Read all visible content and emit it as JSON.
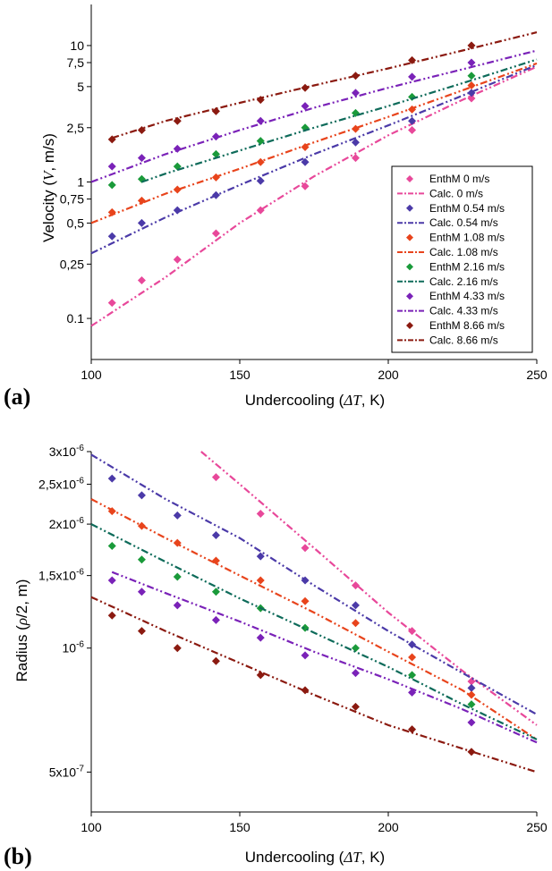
{
  "chart_data": [
    {
      "panel_label": "(a)",
      "type": "scatter",
      "xlabel_prefix": "Undercooling (",
      "xlabel_var": "ΔT",
      "xlabel_suffix": ", K)",
      "ylabel_prefix": "Velocity (",
      "ylabel_var": "V",
      "ylabel_suffix": ", m/s)",
      "xlim": [
        100,
        250
      ],
      "ylim": [
        0.05,
        20
      ],
      "yscale": "log",
      "xticks": [
        100,
        150,
        200,
        250
      ],
      "xtick_labels": [
        "100",
        "150",
        "200",
        "250"
      ],
      "yticks": [
        0.1,
        0.25,
        0.5,
        0.75,
        1,
        2.5,
        5,
        7.5,
        10
      ],
      "ytick_labels": [
        "0.1",
        "0,25",
        "0,5",
        "0,75",
        "1",
        "2,5",
        "5",
        "7,5",
        "10"
      ],
      "legend_position": "bottom-right",
      "legend": [
        {
          "label": "EnthM 0 m/s",
          "kind": "marker",
          "color": "#e8489a"
        },
        {
          "label": "Calc. 0 m/s",
          "kind": "line",
          "color": "#e8489a"
        },
        {
          "label": "EnthM 0.54 m/s",
          "kind": "marker",
          "color": "#4b3aa8"
        },
        {
          "label": "Calc. 0.54 m/s",
          "kind": "line",
          "color": "#4b3aa8"
        },
        {
          "label": "EnthM 1.08 m/s",
          "kind": "marker",
          "color": "#e8441c"
        },
        {
          "label": "Calc. 1.08 m/s",
          "kind": "line",
          "color": "#e8441c"
        },
        {
          "label": "EnthM 2.16 m/s",
          "kind": "marker",
          "color": "#1a9a3a"
        },
        {
          "label": "Calc. 2.16 m/s",
          "kind": "line",
          "color": "#0e6b5a"
        },
        {
          "label": "EnthM 4.33 m/s",
          "kind": "marker",
          "color": "#7a22b8"
        },
        {
          "label": "Calc. 4.33 m/s",
          "kind": "line",
          "color": "#7a22b8"
        },
        {
          "label": "EnthM 8.66 m/s",
          "kind": "marker",
          "color": "#8b1a10"
        },
        {
          "label": "Calc. 8.66 m/s",
          "kind": "line",
          "color": "#8b1a10"
        }
      ],
      "series": [
        {
          "name": "EnthM 0 m/s",
          "kind": "marker",
          "color": "#e8489a",
          "points": [
            [
              107,
              0.13
            ],
            [
              117,
              0.19
            ],
            [
              129,
              0.27
            ],
            [
              142,
              0.42
            ],
            [
              157,
              0.62
            ],
            [
              172,
              0.93
            ],
            [
              189,
              1.5
            ],
            [
              208,
              2.4
            ],
            [
              228,
              4.1
            ]
          ]
        },
        {
          "name": "Calc. 0 m/s",
          "kind": "line",
          "color": "#e8489a",
          "points": [
            [
              100,
              0.088
            ],
            [
              125,
              0.2
            ],
            [
              150,
              0.5
            ],
            [
              175,
              1.1
            ],
            [
              200,
              2.2
            ],
            [
              225,
              4.0
            ],
            [
              250,
              7.0
            ]
          ]
        },
        {
          "name": "EnthM 0.54 m/s",
          "kind": "marker",
          "color": "#4b3aa8",
          "points": [
            [
              107,
              0.4
            ],
            [
              117,
              0.5
            ],
            [
              129,
              0.62
            ],
            [
              142,
              0.8
            ],
            [
              157,
              1.02
            ],
            [
              172,
              1.4
            ],
            [
              189,
              1.95
            ],
            [
              208,
              2.8
            ],
            [
              228,
              4.5
            ]
          ]
        },
        {
          "name": "Calc. 0.54 m/s",
          "kind": "line",
          "color": "#4b3aa8",
          "points": [
            [
              100,
              0.3
            ],
            [
              125,
              0.55
            ],
            [
              150,
              0.95
            ],
            [
              175,
              1.6
            ],
            [
              200,
              2.6
            ],
            [
              225,
              4.3
            ],
            [
              250,
              7.2
            ]
          ]
        },
        {
          "name": "EnthM 1.08 m/s",
          "kind": "marker",
          "color": "#e8441c",
          "points": [
            [
              107,
              0.6
            ],
            [
              117,
              0.73
            ],
            [
              129,
              0.88
            ],
            [
              142,
              1.08
            ],
            [
              157,
              1.4
            ],
            [
              172,
              1.8
            ],
            [
              189,
              2.45
            ],
            [
              208,
              3.4
            ],
            [
              228,
              5.1
            ]
          ]
        },
        {
          "name": "Calc. 1.08 m/s",
          "kind": "line",
          "color": "#e8441c",
          "points": [
            [
              100,
              0.5
            ],
            [
              125,
              0.82
            ],
            [
              150,
              1.25
            ],
            [
              175,
              1.95
            ],
            [
              200,
              3.0
            ],
            [
              225,
              4.7
            ],
            [
              250,
              7.4
            ]
          ]
        },
        {
          "name": "EnthM 2.16 m/s",
          "kind": "marker",
          "color": "#1a9a3a",
          "points": [
            [
              107,
              0.95
            ],
            [
              117,
              1.05
            ],
            [
              129,
              1.3
            ],
            [
              142,
              1.6
            ],
            [
              157,
              2.0
            ],
            [
              172,
              2.5
            ],
            [
              189,
              3.2
            ],
            [
              208,
              4.2
            ],
            [
              228,
              6.0
            ]
          ]
        },
        {
          "name": "Calc. 2.16 m/s",
          "kind": "line",
          "color": "#0e6b5a",
          "points": [
            [
              117,
              1.0
            ],
            [
              125,
              1.15
            ],
            [
              150,
              1.7
            ],
            [
              175,
              2.5
            ],
            [
              200,
              3.6
            ],
            [
              225,
              5.3
            ],
            [
              250,
              7.9
            ]
          ]
        },
        {
          "name": "EnthM 4.33 m/s",
          "kind": "marker",
          "color": "#7a22b8",
          "points": [
            [
              107,
              1.3
            ],
            [
              117,
              1.5
            ],
            [
              129,
              1.75
            ],
            [
              142,
              2.15
            ],
            [
              157,
              2.8
            ],
            [
              172,
              3.6
            ],
            [
              189,
              4.5
            ],
            [
              208,
              5.9
            ],
            [
              228,
              7.5
            ]
          ]
        },
        {
          "name": "Calc. 4.33 m/s",
          "kind": "line",
          "color": "#7a22b8",
          "points": [
            [
              100,
              1.0
            ],
            [
              125,
              1.6
            ],
            [
              150,
              2.4
            ],
            [
              175,
              3.5
            ],
            [
              200,
              4.9
            ],
            [
              225,
              6.7
            ],
            [
              250,
              9.2
            ]
          ]
        },
        {
          "name": "EnthM 8.66 m/s",
          "kind": "marker",
          "color": "#8b1a10",
          "points": [
            [
              107,
              2.05
            ],
            [
              117,
              2.4
            ],
            [
              129,
              2.8
            ],
            [
              142,
              3.3
            ],
            [
              157,
              4.0
            ],
            [
              172,
              4.9
            ],
            [
              189,
              6.0
            ],
            [
              208,
              7.8
            ],
            [
              228,
              10.0
            ]
          ]
        },
        {
          "name": "Calc. 8.66 m/s",
          "kind": "line",
          "color": "#8b1a10",
          "points": [
            [
              107,
              2.1
            ],
            [
              125,
              2.8
            ],
            [
              150,
              3.8
            ],
            [
              175,
              5.1
            ],
            [
              200,
              6.8
            ],
            [
              225,
              9.2
            ],
            [
              250,
              12.5
            ]
          ]
        }
      ]
    },
    {
      "panel_label": "(b)",
      "type": "scatter",
      "xlabel_prefix": "Undercooling (",
      "xlabel_var": "ΔT",
      "xlabel_suffix": ", K)",
      "ylabel_prefix": "Radius (",
      "ylabel_var": "ρ",
      "ylabel_suffix": "/2, m)",
      "xlim": [
        100,
        250
      ],
      "ylim": [
        4e-07,
        3e-06
      ],
      "yscale": "log",
      "xticks": [
        100,
        150,
        200,
        250
      ],
      "xtick_labels": [
        "100",
        "150",
        "200",
        "250"
      ],
      "yticks": [
        5e-07,
        1e-06,
        1.5e-06,
        2e-06,
        2.5e-06,
        3e-06
      ],
      "ytick_labels": [
        {
          "mant": "5x10",
          "exp": "-7"
        },
        {
          "mant": "10",
          "exp": "-6"
        },
        {
          "mant": "1,5x10",
          "exp": "-6"
        },
        {
          "mant": "2x10",
          "exp": "-6"
        },
        {
          "mant": "2,5x10",
          "exp": "-6"
        },
        {
          "mant": "3x10",
          "exp": "-6"
        }
      ],
      "series": [
        {
          "name": "EnthM 0 m/s",
          "kind": "marker",
          "color": "#e8489a",
          "points": [
            [
              142,
              2.6e-06
            ],
            [
              157,
              2.12e-06
            ],
            [
              172,
              1.75e-06
            ],
            [
              189,
              1.42e-06
            ],
            [
              208,
              1.1e-06
            ],
            [
              228,
              8.3e-07
            ]
          ]
        },
        {
          "name": "Calc. 0 m/s",
          "kind": "line",
          "color": "#e8489a",
          "points": [
            [
              137,
              3e-06
            ],
            [
              150,
              2.5e-06
            ],
            [
              175,
              1.75e-06
            ],
            [
              200,
              1.22e-06
            ],
            [
              225,
              8.8e-07
            ],
            [
              250,
              6.5e-07
            ]
          ]
        },
        {
          "name": "EnthM 0.54 m/s",
          "kind": "marker",
          "color": "#4b3aa8",
          "points": [
            [
              107,
              2.58e-06
            ],
            [
              117,
              2.35e-06
            ],
            [
              129,
              2.1e-06
            ],
            [
              142,
              1.88e-06
            ],
            [
              157,
              1.67e-06
            ],
            [
              172,
              1.46e-06
            ],
            [
              189,
              1.27e-06
            ],
            [
              208,
              1.02e-06
            ],
            [
              228,
              8e-07
            ]
          ]
        },
        {
          "name": "Calc. 0.54 m/s",
          "kind": "line",
          "color": "#4b3aa8",
          "points": [
            [
              100,
              2.95e-06
            ],
            [
              125,
              2.3e-06
            ],
            [
              150,
              1.85e-06
            ],
            [
              175,
              1.42e-06
            ],
            [
              200,
              1.1e-06
            ],
            [
              225,
              8.7e-07
            ],
            [
              250,
              6.9e-07
            ]
          ]
        },
        {
          "name": "EnthM 1.08 m/s",
          "kind": "marker",
          "color": "#e8441c",
          "points": [
            [
              107,
              2.15e-06
            ],
            [
              117,
              1.98e-06
            ],
            [
              129,
              1.8e-06
            ],
            [
              142,
              1.63e-06
            ],
            [
              157,
              1.46e-06
            ],
            [
              172,
              1.3e-06
            ],
            [
              189,
              1.15e-06
            ],
            [
              208,
              9.5e-07
            ],
            [
              228,
              7.7e-07
            ]
          ]
        },
        {
          "name": "Calc. 1.08 m/s",
          "kind": "line",
          "color": "#e8441c",
          "points": [
            [
              100,
              2.3e-06
            ],
            [
              125,
              1.85e-06
            ],
            [
              150,
              1.5e-06
            ],
            [
              175,
              1.22e-06
            ],
            [
              200,
              9.8e-07
            ],
            [
              225,
              7.9e-07
            ],
            [
              250,
              6e-07
            ]
          ]
        },
        {
          "name": "EnthM 2.16 m/s",
          "kind": "marker",
          "color": "#1a9a3a",
          "points": [
            [
              107,
              1.77e-06
            ],
            [
              117,
              1.64e-06
            ],
            [
              129,
              1.49e-06
            ],
            [
              142,
              1.37e-06
            ],
            [
              157,
              1.25e-06
            ],
            [
              172,
              1.12e-06
            ],
            [
              189,
              1e-06
            ],
            [
              208,
              8.6e-07
            ],
            [
              228,
              7.3e-07
            ]
          ]
        },
        {
          "name": "Calc. 2.16 m/s",
          "kind": "line",
          "color": "#0e6b5a",
          "points": [
            [
              100,
              2e-06
            ],
            [
              125,
              1.62e-06
            ],
            [
              150,
              1.32e-06
            ],
            [
              175,
              1.09e-06
            ],
            [
              200,
              9e-07
            ],
            [
              225,
              7.3e-07
            ],
            [
              250,
              6e-07
            ]
          ]
        },
        {
          "name": "EnthM 4.33 m/s",
          "kind": "marker",
          "color": "#7a22b8",
          "points": [
            [
              107,
              1.46e-06
            ],
            [
              117,
              1.37e-06
            ],
            [
              129,
              1.27e-06
            ],
            [
              142,
              1.17e-06
            ],
            [
              157,
              1.06e-06
            ],
            [
              172,
              9.6e-07
            ],
            [
              189,
              8.7e-07
            ],
            [
              208,
              7.8e-07
            ],
            [
              228,
              6.6e-07
            ]
          ]
        },
        {
          "name": "Calc. 4.33 m/s",
          "kind": "line",
          "color": "#7a22b8",
          "points": [
            [
              107,
              1.53e-06
            ],
            [
              125,
              1.36e-06
            ],
            [
              150,
              1.16e-06
            ],
            [
              175,
              9.8e-07
            ],
            [
              200,
              8.4e-07
            ],
            [
              225,
              7.1e-07
            ],
            [
              250,
              5.9e-07
            ]
          ]
        },
        {
          "name": "EnthM 8.66 m/s",
          "kind": "marker",
          "color": "#8b1a10",
          "points": [
            [
              107,
              1.2e-06
            ],
            [
              117,
              1.1e-06
            ],
            [
              129,
              1e-06
            ],
            [
              142,
              9.3e-07
            ],
            [
              157,
              8.6e-07
            ],
            [
              172,
              7.9e-07
            ],
            [
              189,
              7.2e-07
            ],
            [
              208,
              6.35e-07
            ],
            [
              228,
              5.6e-07
            ]
          ]
        },
        {
          "name": "Calc. 8.66 m/s",
          "kind": "line",
          "color": "#8b1a10",
          "points": [
            [
              100,
              1.33e-06
            ],
            [
              125,
              1.1e-06
            ],
            [
              150,
              9.2e-07
            ],
            [
              175,
              7.7e-07
            ],
            [
              200,
              6.5e-07
            ],
            [
              225,
              5.7e-07
            ],
            [
              250,
              5e-07
            ]
          ]
        }
      ]
    }
  ]
}
